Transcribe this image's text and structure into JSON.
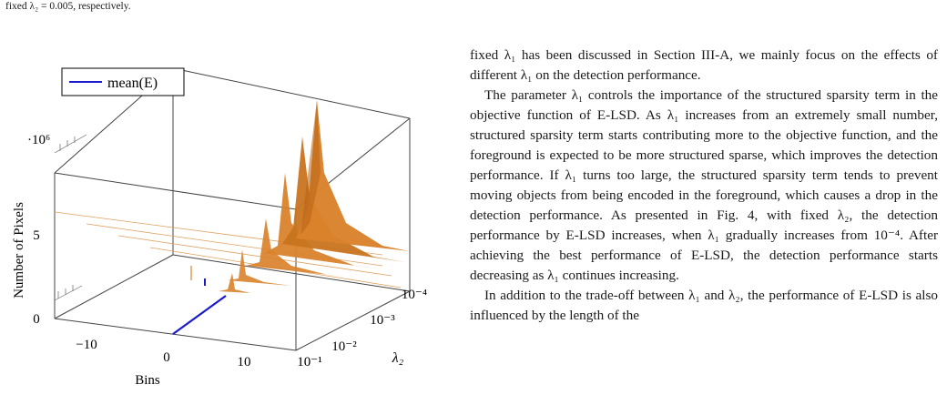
{
  "caption_fragment": "fixed λ₂ = 0.005, respectively.",
  "figure": {
    "legend": "mean(E)",
    "scale_label": "·10⁶",
    "ylabel": "Number of Pixels",
    "xlabel": "Bins",
    "zlabel": "λ₂",
    "y_ticks": [
      "0",
      "5"
    ],
    "x_ticks": [
      "−10",
      "0",
      "10"
    ],
    "z_ticks": [
      "10⁻⁴",
      "10⁻³",
      "10⁻²",
      "10⁻¹"
    ],
    "colors": {
      "surface": "#d9822b",
      "surface_dark": "#b86414",
      "legend_line": "#1a1acc",
      "axis": "#444444"
    }
  },
  "text": {
    "p1": "fixed λ₁ has been discussed in Section III-A, we mainly focus on the effects of different λ₁ on the detection performance.",
    "p2": "The parameter λ₁ controls the importance of the structured sparsity term in the objective function of E-LSD. As λ₁ increases from an extremely small number, structured sparsity term starts contributing more to the objective function, and the foreground is expected to be more structured sparse, which improves the detection performance. If λ₁ turns too large, the structured sparsity term tends to prevent moving objects from being encoded in the foreground, which causes a drop in the detection performance. As presented in Fig. 4, with fixed λ₂, the detection performance by E-LSD increases, when λ₁ gradually increases from 10⁻⁴. After achieving the best performance of E-LSD, the detection performance starts decreasing as λ₁ continues increasing.",
    "p3": "In addition to the trade-off between λ₁ and λ₂, the performance of E-LSD is also influenced by the length of the"
  }
}
